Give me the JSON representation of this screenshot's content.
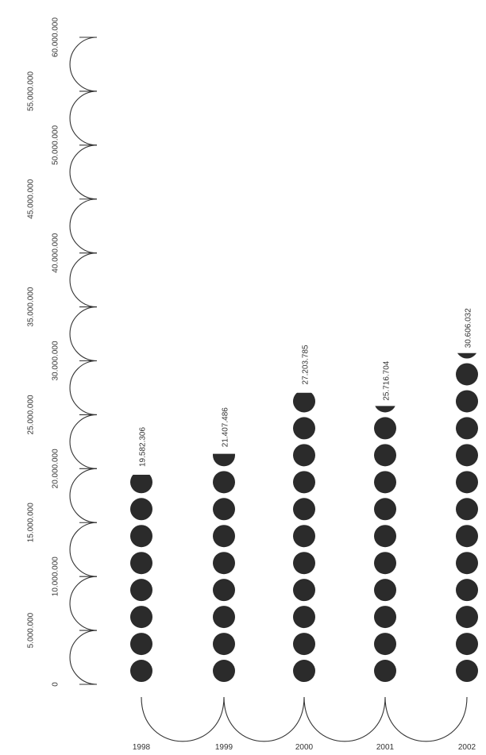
{
  "chart_data": {
    "type": "bar",
    "categories": [
      "1998",
      "1999",
      "2000",
      "2001",
      "2002"
    ],
    "values": [
      19582306,
      21407486,
      27203785,
      25716704,
      30606032
    ],
    "value_labels": [
      "19.582.306",
      "21.407.486",
      "27.203.785",
      "25.716.704",
      "30.606.032"
    ],
    "unit_per_symbol": 2500000,
    "ylim": [
      0,
      60000000
    ],
    "yticks": [
      0,
      5000000,
      10000000,
      15000000,
      20000000,
      25000000,
      30000000,
      35000000,
      40000000,
      45000000,
      50000000,
      55000000,
      60000000
    ],
    "ytick_labels": [
      "0",
      "5.000.000",
      "10.000.000",
      "15.000.000",
      "20.000.000",
      "25.000.000",
      "30.000.000",
      "35.000.000",
      "40.000.000",
      "45.000.000",
      "50.000.000",
      "55.000.000",
      "60.000.000"
    ],
    "title": "",
    "xlabel": "",
    "ylabel": "",
    "grid": false,
    "colors": {
      "symbol": "#2b2b2b",
      "axis": "#333333"
    }
  }
}
